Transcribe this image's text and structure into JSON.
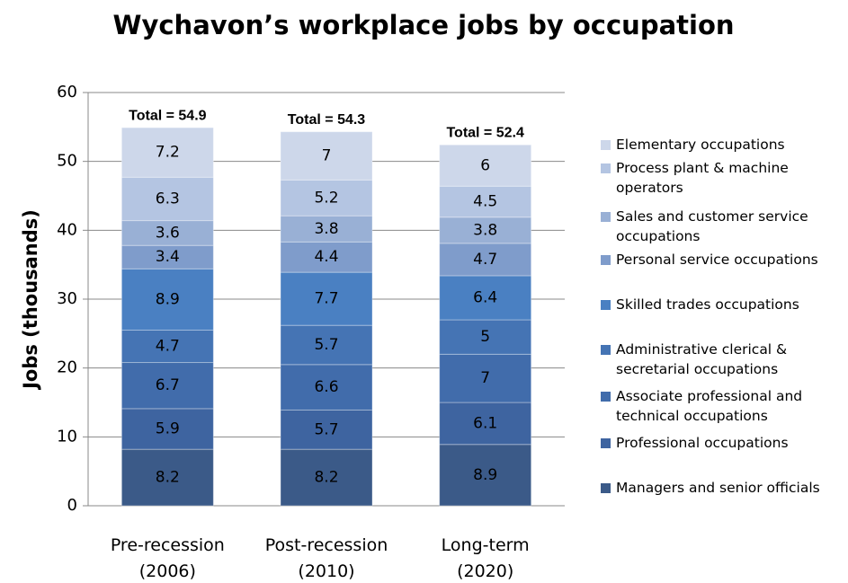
{
  "chart_data": {
    "type": "stacked_bar",
    "title": "Wychavon’s workplace jobs by occupation",
    "y_label": "Jobs (thousands)",
    "categories": [
      "Pre-recession (2006)",
      "Post-recession (2010)",
      "Long-term (2020)"
    ],
    "annotations": [
      "Total = 54.9",
      "Total = 54.3",
      "Total = 52.4"
    ],
    "ylim": [
      0,
      60
    ],
    "yticks": [
      0,
      10,
      20,
      30,
      40,
      50,
      60
    ],
    "grid": true,
    "legend": "right",
    "series": [
      {
        "name": "Managers and senior officials",
        "color": "#3b5a88",
        "values": [
          8.2,
          8.2,
          8.9
        ]
      },
      {
        "name": "Professional occupations",
        "color": "#3e64a0",
        "values": [
          5.9,
          5.7,
          6.1
        ]
      },
      {
        "name": "Associate professional and technical occupations",
        "color": "#416cab",
        "values": [
          6.7,
          6.6,
          7
        ]
      },
      {
        "name": "Administrative clerical & secretarial occupations",
        "color": "#4574b4",
        "values": [
          4.7,
          5.7,
          5
        ]
      },
      {
        "name": "Skilled trades occupations",
        "color": "#4a80c2",
        "values": [
          8.9,
          7.7,
          6.4
        ]
      },
      {
        "name": "Personal service occupations",
        "color": "#7f9ccb",
        "values": [
          3.4,
          4.4,
          4.7
        ]
      },
      {
        "name": "Sales and customer service occupations",
        "color": "#99b0d5",
        "values": [
          3.6,
          3.8,
          3.8
        ]
      },
      {
        "name": "Process plant & machine operators",
        "color": "#b4c5e2",
        "values": [
          6.3,
          5.2,
          4.5
        ]
      },
      {
        "name": "Elementary occupations",
        "color": "#cdd7ea",
        "values": [
          7.2,
          7,
          6
        ]
      }
    ]
  }
}
